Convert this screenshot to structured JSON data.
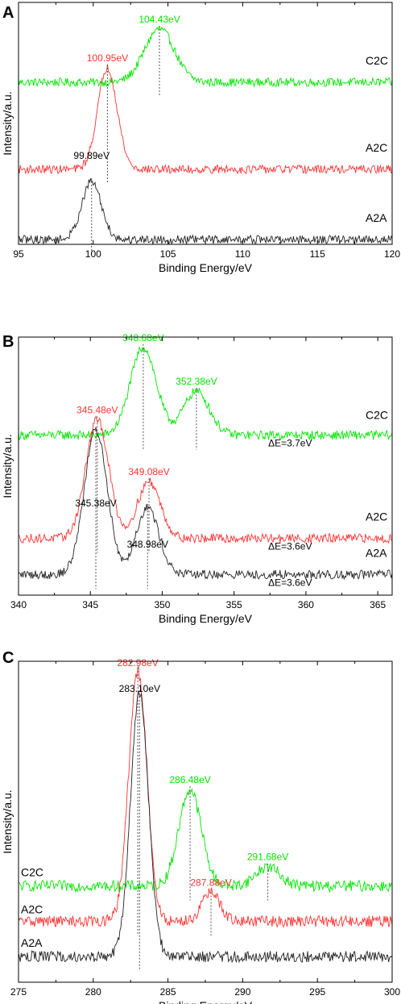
{
  "chart_data": [
    {
      "type": "line",
      "panel": "A",
      "xlabel": "Binding Energy/eV",
      "ylabel": "Intensity/a.u.",
      "xlim": [
        95,
        120
      ],
      "xticks": [
        "95",
        "100",
        "105",
        "110",
        "115",
        "120"
      ],
      "ylim": [
        0,
        1
      ],
      "grid": false,
      "series": [
        {
          "name": "C2C",
          "color": "#00e600",
          "baseline": 0.67,
          "peaks": [
            {
              "x": 104.43,
              "amp": 0.22,
              "sigma": 1.0
            }
          ],
          "dashed_markers": [
            104.43
          ]
        },
        {
          "name": "A2C",
          "color": "#ff3333",
          "baseline": 0.31,
          "peaks": [
            {
              "x": 100.95,
              "amp": 0.42,
              "sigma": 0.65
            }
          ],
          "dashed_markers": [
            100.95
          ]
        },
        {
          "name": "A2A",
          "color": "#222222",
          "baseline": 0.02,
          "peaks": [
            {
              "x": 99.89,
              "amp": 0.24,
              "sigma": 0.65
            }
          ],
          "dashed_markers": [
            99.89
          ]
        }
      ],
      "annotations": [
        {
          "text": "104.43eV",
          "x": 104.43,
          "color": "#00e600"
        },
        {
          "text": "100.95eV",
          "x": 100.95,
          "color": "#ff3333"
        },
        {
          "text": "99.89eV",
          "x": 99.89,
          "color": "#000000"
        }
      ]
    },
    {
      "type": "line",
      "panel": "B",
      "xlabel": "Binding Energy/eV",
      "ylabel": "Intensity/a.u.",
      "xlim": [
        340,
        366
      ],
      "xticks": [
        "340",
        "345",
        "350",
        "355",
        "360",
        "365"
      ],
      "ylim": [
        0,
        1
      ],
      "grid": false,
      "series": [
        {
          "name": "C2C",
          "color": "#00e600",
          "baseline": 0.62,
          "peaks": [
            {
              "x": 348.68,
              "amp": 0.34,
              "sigma": 0.9
            },
            {
              "x": 352.38,
              "amp": 0.17,
              "sigma": 0.9
            }
          ],
          "dashed_markers": [
            348.68,
            352.38
          ]
        },
        {
          "name": "A2C",
          "color": "#ff3333",
          "baseline": 0.22,
          "peaks": [
            {
              "x": 345.48,
              "amp": 0.46,
              "sigma": 0.8
            },
            {
              "x": 349.08,
              "amp": 0.22,
              "sigma": 0.8
            }
          ],
          "dashed_markers": [
            345.48,
            349.08
          ]
        },
        {
          "name": "A2A",
          "color": "#222222",
          "baseline": 0.08,
          "peaks": [
            {
              "x": 345.38,
              "amp": 0.56,
              "sigma": 0.8
            },
            {
              "x": 348.98,
              "amp": 0.26,
              "sigma": 0.8
            }
          ],
          "dashed_markers": [
            345.38,
            348.98
          ]
        }
      ],
      "annotations": [
        {
          "text": "348.68eV",
          "x": 348.68,
          "color": "#00e600"
        },
        {
          "text": "352.38eV",
          "x": 352.38,
          "color": "#00e600"
        },
        {
          "text": "345.48eV",
          "x": 345.48,
          "color": "#ff3333"
        },
        {
          "text": "349.08eV",
          "x": 349.08,
          "color": "#ff3333"
        },
        {
          "text": "345.38eV",
          "x": 345.38,
          "color": "#000000"
        },
        {
          "text": "348.98eV",
          "x": 348.98,
          "color": "#000000"
        },
        {
          "text": "ΔE=3.7eV",
          "color": "#000000"
        },
        {
          "text": "ΔE=3.6eV",
          "color": "#000000"
        },
        {
          "text": "ΔE=3.6eV",
          "color": "#000000"
        }
      ]
    },
    {
      "type": "line",
      "panel": "C",
      "xlabel": "Binding Energy/eV",
      "ylabel": "Intensity/a.u.",
      "xlim": [
        275,
        300
      ],
      "xticks": [
        "275",
        "280",
        "285",
        "290",
        "295",
        "300"
      ],
      "ylim": [
        0,
        1
      ],
      "grid": false,
      "series": [
        {
          "name": "C2C",
          "color": "#00e600",
          "baseline": 0.3,
          "peaks": [
            {
              "x": 286.48,
              "amp": 0.3,
              "sigma": 0.75
            },
            {
              "x": 291.68,
              "amp": 0.06,
              "sigma": 0.8
            }
          ],
          "dashed_markers": [
            286.48,
            291.68
          ]
        },
        {
          "name": "A2C",
          "color": "#ff3333",
          "baseline": 0.19,
          "peaks": [
            {
              "x": 282.98,
              "amp": 0.78,
              "sigma": 0.6
            },
            {
              "x": 287.88,
              "amp": 0.09,
              "sigma": 0.6
            }
          ],
          "dashed_markers": [
            282.98,
            287.88
          ]
        },
        {
          "name": "A2A",
          "color": "#222222",
          "baseline": 0.08,
          "peaks": [
            {
              "x": 283.1,
              "amp": 0.82,
              "sigma": 0.6
            }
          ],
          "dashed_markers": [
            283.1
          ]
        }
      ],
      "annotations": [
        {
          "text": "282.98eV",
          "x": 282.98,
          "color": "#ff3333"
        },
        {
          "text": "283.10eV",
          "x": 283.1,
          "color": "#000000"
        },
        {
          "text": "286.48eV",
          "x": 286.48,
          "color": "#00e600"
        },
        {
          "text": "291.68eV",
          "x": 291.68,
          "color": "#00e600"
        },
        {
          "text": "287.88eV",
          "x": 287.88,
          "color": "#ff3333"
        }
      ]
    }
  ]
}
